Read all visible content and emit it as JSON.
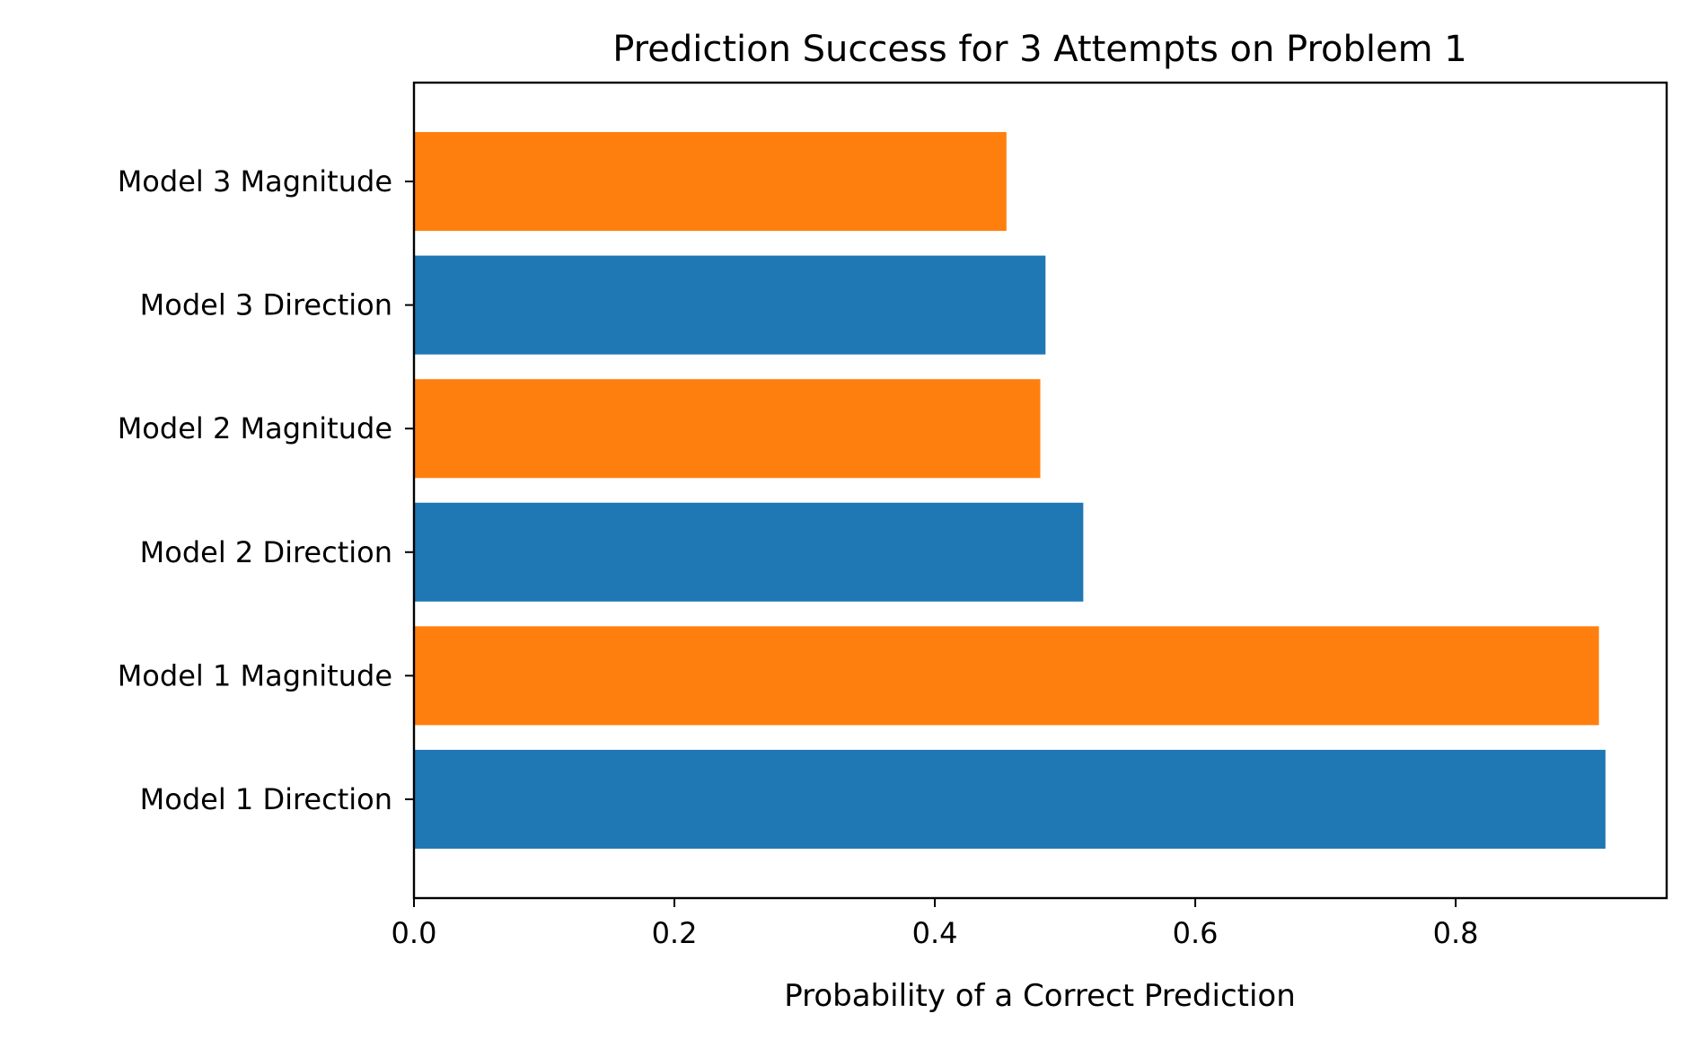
{
  "chart_data": {
    "type": "bar",
    "orientation": "horizontal",
    "title": "Prediction Success for 3 Attempts on Problem 1",
    "xlabel": "Probability of a Correct Prediction",
    "ylabel": "",
    "categories": [
      "Model 1 Direction",
      "Model 1 Magnitude",
      "Model 2 Direction",
      "Model 2 Magnitude",
      "Model 3 Direction",
      "Model 3 Magnitude"
    ],
    "values": [
      0.915,
      0.91,
      0.514,
      0.481,
      0.485,
      0.455
    ],
    "bar_colors": [
      "#1f77b4",
      "#ff7f0e",
      "#1f77b4",
      "#ff7f0e",
      "#1f77b4",
      "#ff7f0e"
    ],
    "xlim": [
      0,
      0.962
    ],
    "xticks": [
      0.0,
      0.2,
      0.4,
      0.6,
      0.8
    ],
    "xtick_labels": [
      "0.0",
      "0.2",
      "0.4",
      "0.6",
      "0.8"
    ],
    "grid": false,
    "legend": "none"
  }
}
